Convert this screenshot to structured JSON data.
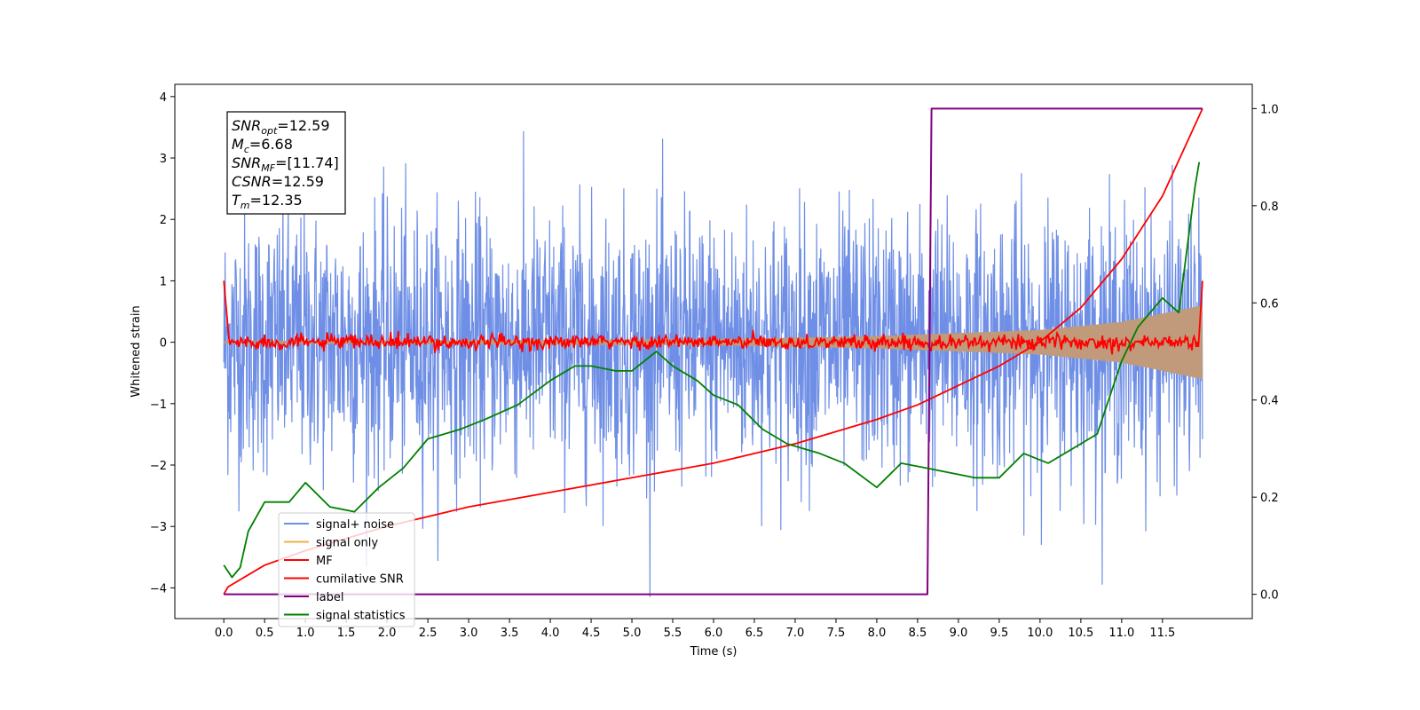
{
  "chart_data": {
    "type": "line",
    "xlabel": "Time (s)",
    "ylabel": "Whitened strain",
    "xlim": [
      -0.6,
      12.6
    ],
    "ylim": [
      -4.5,
      4.2
    ],
    "y2lim": [
      -0.05,
      1.05
    ],
    "x_ticks": [
      0.0,
      0.5,
      1.0,
      1.5,
      2.0,
      2.5,
      3.0,
      3.5,
      4.0,
      4.5,
      5.0,
      5.5,
      6.0,
      6.5,
      7.0,
      7.5,
      8.0,
      8.5,
      9.0,
      9.5,
      10.0,
      10.5,
      11.0,
      11.5
    ],
    "x_tick_labels": [
      "0.0",
      "0.5",
      "1.0",
      "1.5",
      "2.0",
      "2.5",
      "3.0",
      "3.5",
      "4.0",
      "4.5",
      "5.0",
      "5.5",
      "6.0",
      "6.5",
      "7.0",
      "7.5",
      "8.0",
      "8.5",
      "9.0",
      "9.5",
      "10.0",
      "10.5",
      "11.0",
      "11.5"
    ],
    "y_ticks": [
      -4,
      -3,
      -2,
      -1,
      0,
      1,
      2,
      3,
      4
    ],
    "y_tick_labels": [
      "−4",
      "−3",
      "−2",
      "−1",
      "0",
      "1",
      "2",
      "3",
      "4"
    ],
    "y2_ticks": [
      0.0,
      0.2,
      0.4,
      0.6,
      0.8,
      1.0
    ],
    "y2_tick_labels": [
      "0.0",
      "0.2",
      "0.4",
      "0.6",
      "0.8",
      "1.0"
    ],
    "annotation": [
      {
        "base": "SNR",
        "sub": "opt",
        "val": "=12.59"
      },
      {
        "base": "M",
        "sub": "c",
        "val": "=6.68"
      },
      {
        "base": "SNR",
        "sub": "MF",
        "val": "=[11.74]"
      },
      {
        "base": "CSNR",
        "sub": "",
        "val": "=12.59"
      },
      {
        "base": "T",
        "sub": "m",
        "val": "=12.35"
      }
    ],
    "legend": [
      "signal+ noise",
      "signal only",
      "MF",
      "cumilative SNR",
      "label",
      "signal statistics"
    ],
    "legend_loc": "lower-left",
    "colors": {
      "noise": "#6f8fe6",
      "signal": "#f0b04a",
      "overlap": "#c09a7a",
      "mf": "#ff0000",
      "csnr": "#ff0000",
      "label": "#800080",
      "stats": "#008000"
    },
    "series": [
      {
        "name": "signal+ noise",
        "axis": "left",
        "x_range": [
          0.0,
          11.99
        ],
        "y_range": [
          -4.15,
          3.8
        ]
      },
      {
        "name": "signal only",
        "axis": "left",
        "x_range": [
          0.0,
          11.99
        ],
        "amplitude": [
          [
            0.0,
            0.02
          ],
          [
            6.0,
            0.05
          ],
          [
            8.0,
            0.1
          ],
          [
            10.0,
            0.2
          ],
          [
            11.0,
            0.33
          ],
          [
            11.99,
            0.6
          ]
        ]
      },
      {
        "name": "MF",
        "axis": "left",
        "x": [
          0.0,
          0.05,
          6.0,
          11.94,
          11.99
        ],
        "y": [
          1.0,
          0.0,
          0.0,
          0.0,
          1.0
        ]
      },
      {
        "name": "cumilative SNR",
        "axis": "right",
        "x": [
          0.0,
          0.05,
          0.5,
          1.0,
          2.0,
          3.0,
          4.0,
          5.0,
          6.0,
          7.0,
          8.0,
          8.5,
          9.0,
          9.5,
          10.0,
          10.5,
          11.0,
          11.5,
          11.99
        ],
        "y": [
          0.0,
          0.015,
          0.06,
          0.09,
          0.14,
          0.18,
          0.21,
          0.24,
          0.27,
          0.31,
          0.36,
          0.39,
          0.43,
          0.47,
          0.52,
          0.59,
          0.69,
          0.82,
          1.0
        ]
      },
      {
        "name": "label",
        "axis": "right",
        "x": [
          0.0,
          8.62,
          8.67,
          11.99
        ],
        "y": [
          0.0,
          0.0,
          1.0,
          1.0
        ]
      },
      {
        "name": "signal statistics",
        "axis": "right",
        "x": [
          0.0,
          0.1,
          0.2,
          0.3,
          0.5,
          0.8,
          1.0,
          1.3,
          1.6,
          1.9,
          2.2,
          2.5,
          2.9,
          3.2,
          3.6,
          4.0,
          4.3,
          4.5,
          4.8,
          5.0,
          5.3,
          5.5,
          5.8,
          6.0,
          6.3,
          6.6,
          6.9,
          7.3,
          7.6,
          8.0,
          8.3,
          8.6,
          8.9,
          9.2,
          9.5,
          9.8,
          10.1,
          10.4,
          10.7,
          11.0,
          11.2,
          11.5,
          11.7,
          11.9,
          11.95
        ],
        "y": [
          0.06,
          0.035,
          0.055,
          0.13,
          0.19,
          0.19,
          0.23,
          0.18,
          0.17,
          0.22,
          0.26,
          0.32,
          0.34,
          0.36,
          0.39,
          0.44,
          0.47,
          0.47,
          0.46,
          0.46,
          0.5,
          0.47,
          0.44,
          0.41,
          0.39,
          0.34,
          0.31,
          0.29,
          0.27,
          0.22,
          0.27,
          0.26,
          0.25,
          0.24,
          0.24,
          0.29,
          0.27,
          0.3,
          0.33,
          0.48,
          0.55,
          0.61,
          0.58,
          0.84,
          0.89
        ]
      }
    ]
  }
}
